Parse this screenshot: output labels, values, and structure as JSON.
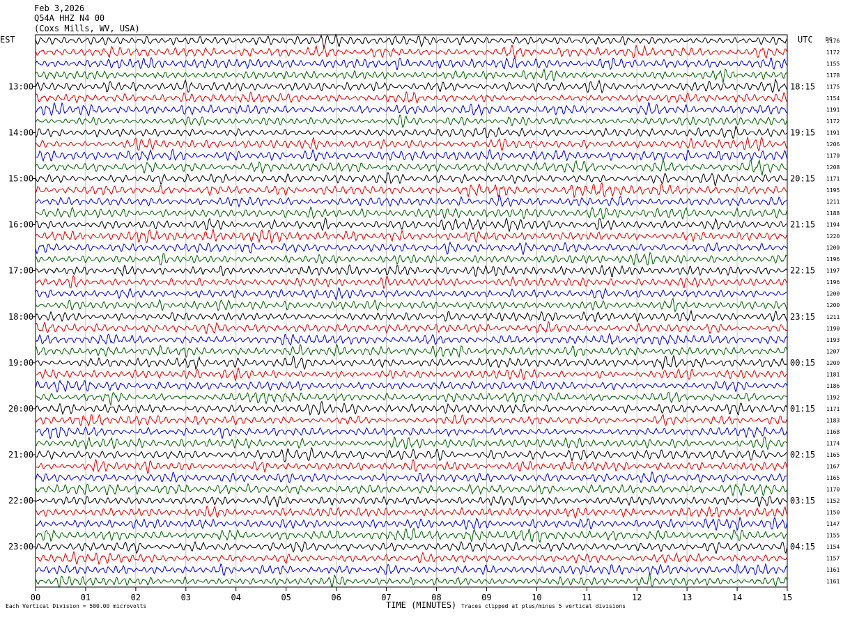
{
  "header": {
    "date": "Feb 3,2026",
    "station": "Q54A HHZ N4 00",
    "location": "(Coxs Mills, WV, USA)"
  },
  "left_axis_title": "EST",
  "right_axis_title": "UTC",
  "dc_title": "DC",
  "footer": {
    "scale_note": "Each Vertical Division = 500.00 microvolts",
    "clip_note": "Traces clipped at plus/minus 5 vertical divisions"
  },
  "colors": {
    "trace_cycle": [
      "#000000",
      "#e00000",
      "#0000d0",
      "#006000"
    ],
    "grid": "#c0c0c0"
  },
  "chart_data": {
    "type": "line",
    "title": "",
    "xlabel": "TIME (MINUTES)",
    "ylabel": "",
    "xlim": [
      0,
      15
    ],
    "x_tick_labels": [
      "00",
      "01",
      "02",
      "03",
      "04",
      "05",
      "06",
      "07",
      "08",
      "09",
      "10",
      "11",
      "12",
      "13",
      "14",
      "15"
    ],
    "local_hour_labels": [
      "13:00",
      "14:00",
      "15:00",
      "16:00",
      "17:00",
      "18:00",
      "19:00",
      "20:00",
      "21:00",
      "22:00",
      "23:00"
    ],
    "utc_hour_labels": [
      "18:15",
      "19:15",
      "20:15",
      "21:15",
      "22:15",
      "23:15",
      "00:15",
      "01:15",
      "02:15",
      "03:15",
      "04:15"
    ],
    "dc_offsets": [
      1176,
      1172,
      1155,
      1178,
      1175,
      1154,
      1191,
      1172,
      1191,
      1206,
      1179,
      1208,
      1171,
      1195,
      1211,
      1188,
      1194,
      1220,
      1209,
      1196,
      1197,
      1196,
      1200,
      1200,
      1211,
      1190,
      1193,
      1207,
      1200,
      1181,
      1186,
      1192,
      1171,
      1183,
      1168,
      1174,
      1165,
      1167,
      1165,
      1170,
      1152,
      1150,
      1147,
      1155,
      1154,
      1157,
      1161,
      1161
    ],
    "traces_per_hour": 4,
    "minutes_per_trace": 15,
    "grid": true
  }
}
